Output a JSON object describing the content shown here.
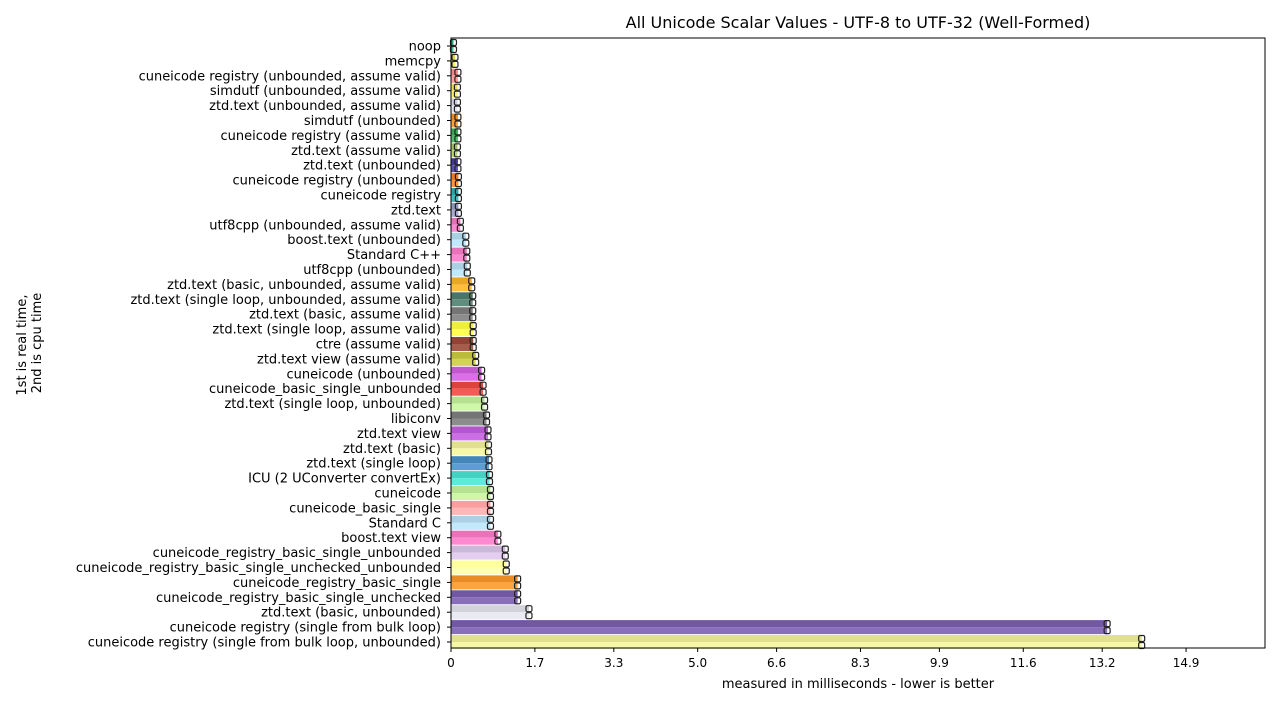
{
  "chart_data": {
    "type": "bar",
    "orientation": "horizontal",
    "title": "All Unicode Scalar Values - UTF-8 to UTF-32 (Well-Formed)",
    "xlabel": "measured in milliseconds - lower is better",
    "ylabel": "1st is real time,\n2nd is cpu time",
    "xlim": [
      0,
      16.5
    ],
    "xticks": [
      0,
      1.7,
      3.3,
      5.0,
      6.6,
      8.3,
      9.9,
      11.6,
      13.2,
      14.9
    ],
    "xtick_labels": [
      "0",
      "1.7",
      "3.3",
      "5.0",
      "6.6",
      "8.3",
      "9.9",
      "11.6",
      "13.2",
      "14.9"
    ],
    "grid": false,
    "legend": "none",
    "series": [
      {
        "name": "1st is real time"
      },
      {
        "name": "2nd is cpu time"
      }
    ],
    "bars": [
      {
        "label": "noop",
        "values": [
          0.05,
          0.05
        ],
        "color": "#1a9e77"
      },
      {
        "label": "memcpy",
        "values": [
          0.08,
          0.08
        ],
        "color": "#d4d432"
      },
      {
        "label": "cuneicode registry (unbounded, assume valid)",
        "values": [
          0.14,
          0.14
        ],
        "color": "#f08080"
      },
      {
        "label": "simdutf (unbounded, assume valid)",
        "values": [
          0.13,
          0.13
        ],
        "color": "#e6d84a"
      },
      {
        "label": "ztd.text (unbounded, assume valid)",
        "values": [
          0.13,
          0.13
        ],
        "color": "#c9c9d9"
      },
      {
        "label": "simdutf (unbounded)",
        "values": [
          0.14,
          0.14
        ],
        "color": "#e8861a"
      },
      {
        "label": "cuneicode registry (assume valid)",
        "values": [
          0.14,
          0.14
        ],
        "color": "#2e9e4a"
      },
      {
        "label": "ztd.text (assume valid)",
        "values": [
          0.13,
          0.13
        ],
        "color": "#9bbb59"
      },
      {
        "label": "ztd.text (unbounded)",
        "values": [
          0.14,
          0.14
        ],
        "color": "#3b2e8e"
      },
      {
        "label": "cuneicode registry (unbounded)",
        "values": [
          0.15,
          0.15
        ],
        "color": "#e8741a"
      },
      {
        "label": "cuneicode registry",
        "values": [
          0.15,
          0.15
        ],
        "color": "#1aa0a0"
      },
      {
        "label": "ztd.text",
        "values": [
          0.15,
          0.15
        ],
        "color": "#8c8cb4"
      },
      {
        "label": "utf8cpp (unbounded, assume valid)",
        "values": [
          0.19,
          0.19
        ],
        "color": "#e06ab4"
      },
      {
        "label": "boost.text (unbounded)",
        "values": [
          0.3,
          0.3
        ],
        "color": "#a6cee3"
      },
      {
        "label": "Standard C++",
        "values": [
          0.32,
          0.32
        ],
        "color": "#e86ab4"
      },
      {
        "label": "utf8cpp (unbounded)",
        "values": [
          0.33,
          0.33
        ],
        "color": "#a6cee3"
      },
      {
        "label": "ztd.text (basic, unbounded, assume valid)",
        "values": [
          0.42,
          0.42
        ],
        "color": "#e8a21a"
      },
      {
        "label": "ztd.text (single loop, unbounded, assume valid)",
        "values": [
          0.44,
          0.44
        ],
        "color": "#3e6e5e"
      },
      {
        "label": "ztd.text (basic, assume valid)",
        "values": [
          0.44,
          0.44
        ],
        "color": "#6e6e6e"
      },
      {
        "label": "ztd.text (single loop, assume valid)",
        "values": [
          0.45,
          0.45
        ],
        "color": "#eded32"
      },
      {
        "label": "ctre (assume valid)",
        "values": [
          0.45,
          0.45
        ],
        "color": "#8a3a2a"
      },
      {
        "label": "ztd.text view (assume valid)",
        "values": [
          0.5,
          0.5
        ],
        "color": "#b8b832"
      },
      {
        "label": "cuneicode (unbounded)",
        "values": [
          0.62,
          0.62
        ],
        "color": "#c04ecc"
      },
      {
        "label": "cuneicode_basic_single_unbounded",
        "values": [
          0.65,
          0.65
        ],
        "color": "#d83a32"
      },
      {
        "label": "ztd.text (single loop, unbounded)",
        "values": [
          0.68,
          0.68
        ],
        "color": "#b2df8a"
      },
      {
        "label": "libiconv",
        "values": [
          0.72,
          0.72
        ],
        "color": "#6e6e6e"
      },
      {
        "label": "ztd.text view",
        "values": [
          0.75,
          0.75
        ],
        "color": "#b04ecc"
      },
      {
        "label": "ztd.text (basic)",
        "values": [
          0.76,
          0.76
        ],
        "color": "#dede8a"
      },
      {
        "label": "ztd.text (single loop)",
        "values": [
          0.77,
          0.77
        ],
        "color": "#3a80b4"
      },
      {
        "label": "ICU (2 UConverter convertEx)",
        "values": [
          0.78,
          0.78
        ],
        "color": "#3ad0c0"
      },
      {
        "label": "cuneicode",
        "values": [
          0.8,
          0.8
        ],
        "color": "#b2df8a"
      },
      {
        "label": "cuneicode_basic_single",
        "values": [
          0.8,
          0.8
        ],
        "color": "#fa9a9a"
      },
      {
        "label": "Standard C",
        "values": [
          0.8,
          0.8
        ],
        "color": "#a6cee3"
      },
      {
        "label": "boost.text view",
        "values": [
          0.95,
          0.95
        ],
        "color": "#e86ab4"
      },
      {
        "label": "cuneicode_registry_basic_single_unbounded",
        "values": [
          1.1,
          1.1
        ],
        "color": "#cab2d6"
      },
      {
        "label": "cuneicode_registry_basic_single_unchecked_unbounded",
        "values": [
          1.12,
          1.12
        ],
        "color": "#ffff99"
      },
      {
        "label": "cuneicode_registry_basic_single",
        "values": [
          1.35,
          1.35
        ],
        "color": "#e8861a"
      },
      {
        "label": "cuneicode_registry_basic_single_unchecked",
        "values": [
          1.35,
          1.35
        ],
        "color": "#6a4e9e"
      },
      {
        "label": "ztd.text (basic, unbounded)",
        "values": [
          1.58,
          1.58
        ],
        "color": "#d0d0d8"
      },
      {
        "label": "cuneicode registry (single from bulk loop)",
        "values": [
          13.3,
          13.3
        ],
        "color": "#6a4e9e"
      },
      {
        "label": "cuneicode registry (single from bulk loop, unbounded)",
        "values": [
          14.0,
          14.0
        ],
        "color": "#dede8a"
      }
    ]
  }
}
